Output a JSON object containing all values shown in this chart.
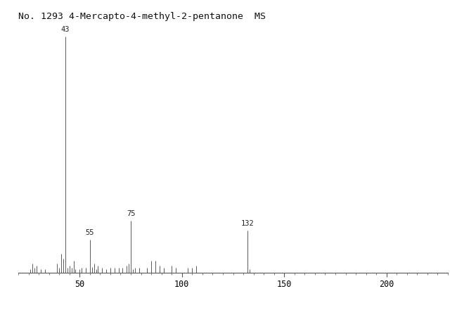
{
  "title": "No. 1293 4-Mercapto-4-methyl-2-pentanone  MS",
  "title_fontsize": 9.5,
  "xmin": 20,
  "xmax": 230,
  "ymin": 0,
  "ymax": 105,
  "xticks": [
    50,
    100,
    150,
    200
  ],
  "background_color": "#ffffff",
  "peaks": [
    {
      "mz": 26,
      "intensity": 1.5
    },
    {
      "mz": 27,
      "intensity": 4
    },
    {
      "mz": 28,
      "intensity": 2
    },
    {
      "mz": 29,
      "intensity": 3
    },
    {
      "mz": 31,
      "intensity": 1.5
    },
    {
      "mz": 33,
      "intensity": 1.5
    },
    {
      "mz": 39,
      "intensity": 4
    },
    {
      "mz": 40,
      "intensity": 2
    },
    {
      "mz": 41,
      "intensity": 8
    },
    {
      "mz": 42,
      "intensity": 6
    },
    {
      "mz": 43,
      "intensity": 100
    },
    {
      "mz": 44,
      "intensity": 2
    },
    {
      "mz": 45,
      "intensity": 3
    },
    {
      "mz": 46,
      "intensity": 2
    },
    {
      "mz": 47,
      "intensity": 5
    },
    {
      "mz": 48,
      "intensity": 1.5
    },
    {
      "mz": 50,
      "intensity": 1.5
    },
    {
      "mz": 51,
      "intensity": 2
    },
    {
      "mz": 53,
      "intensity": 2
    },
    {
      "mz": 55,
      "intensity": 14
    },
    {
      "mz": 56,
      "intensity": 2.5
    },
    {
      "mz": 57,
      "intensity": 4
    },
    {
      "mz": 58,
      "intensity": 1.5
    },
    {
      "mz": 59,
      "intensity": 3
    },
    {
      "mz": 61,
      "intensity": 2
    },
    {
      "mz": 63,
      "intensity": 1.5
    },
    {
      "mz": 65,
      "intensity": 2
    },
    {
      "mz": 67,
      "intensity": 2
    },
    {
      "mz": 69,
      "intensity": 2
    },
    {
      "mz": 71,
      "intensity": 2
    },
    {
      "mz": 73,
      "intensity": 3
    },
    {
      "mz": 74,
      "intensity": 4
    },
    {
      "mz": 75,
      "intensity": 22
    },
    {
      "mz": 76,
      "intensity": 1.5
    },
    {
      "mz": 77,
      "intensity": 2
    },
    {
      "mz": 79,
      "intensity": 2
    },
    {
      "mz": 83,
      "intensity": 2
    },
    {
      "mz": 85,
      "intensity": 5
    },
    {
      "mz": 87,
      "intensity": 5
    },
    {
      "mz": 89,
      "intensity": 3
    },
    {
      "mz": 91,
      "intensity": 2
    },
    {
      "mz": 95,
      "intensity": 3
    },
    {
      "mz": 97,
      "intensity": 2
    },
    {
      "mz": 103,
      "intensity": 2
    },
    {
      "mz": 105,
      "intensity": 2
    },
    {
      "mz": 107,
      "intensity": 3
    },
    {
      "mz": 132,
      "intensity": 18
    },
    {
      "mz": 133,
      "intensity": 1.5
    }
  ],
  "labeled_peaks": [
    {
      "mz": 43,
      "label": "43"
    },
    {
      "mz": 55,
      "label": "55"
    },
    {
      "mz": 75,
      "label": "75"
    },
    {
      "mz": 132,
      "label": "132"
    }
  ],
  "line_color": "#404040",
  "label_fontsize": 7.5
}
